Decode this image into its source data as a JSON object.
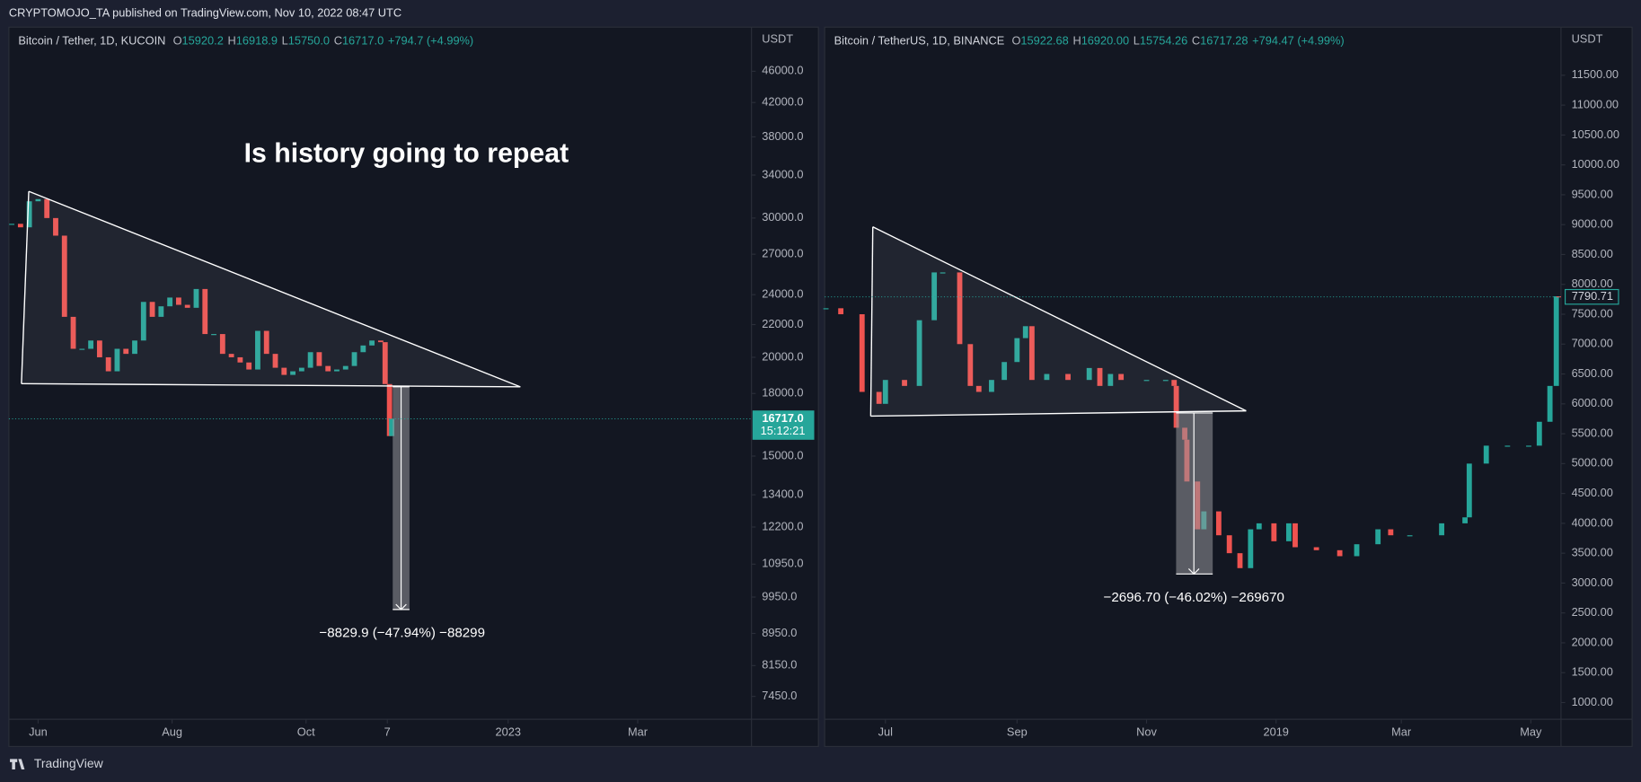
{
  "header": "CRYPTOMOJO_TA published on TradingView.com, Nov 10, 2022 08:47 UTC",
  "footer": "TradingView",
  "chart_data": [
    {
      "type": "candlestick",
      "title": "Is history going to repeat",
      "symbol": "Bitcoin / Tether, 1D, KUCOIN",
      "ohlc": [
        {
          "key": "O",
          "value": "15920.2"
        },
        {
          "key": "H",
          "value": "16918.9"
        },
        {
          "key": "L",
          "value": "15750.0"
        },
        {
          "key": "C",
          "value": "16717.0"
        }
      ],
      "change": "+794.7 (+4.99%)",
      "currency": "USDT",
      "x": [
        -12,
        -8,
        -4,
        0,
        4,
        8,
        12,
        16,
        20,
        24,
        28,
        32,
        36,
        40,
        44,
        48,
        52,
        56,
        60,
        64,
        68,
        72,
        76,
        80,
        84,
        88,
        92,
        96,
        100,
        104,
        108,
        112,
        116,
        120,
        124,
        128,
        132,
        136,
        140,
        144,
        148,
        152,
        156,
        158,
        160,
        161
      ],
      "values": [
        29500,
        29200,
        31500,
        31700,
        30000,
        28500,
        22500,
        20500,
        20500,
        21000,
        20000,
        19200,
        20500,
        20200,
        21000,
        23500,
        22500,
        23200,
        23800,
        23300,
        23100,
        24400,
        21400,
        21400,
        20200,
        20000,
        19700,
        19300,
        21600,
        20200,
        19400,
        19000,
        19200,
        19400,
        20300,
        19500,
        19200,
        19300,
        19500,
        20300,
        20700,
        21000,
        20900,
        18500,
        15900,
        16717
      ],
      "up_color": "#26a69a",
      "down_color": "#ef5350",
      "log_scale": true,
      "xlim": [
        -13.3,
        324.8
      ],
      "ylim": [
        6970,
        52300
      ],
      "xticks": [
        {
          "value": 0,
          "label": "Jun"
        },
        {
          "value": 61,
          "label": "Aug"
        },
        {
          "value": 122,
          "label": "Oct"
        },
        {
          "value": 159,
          "label": "7"
        },
        {
          "value": 214,
          "label": "2023"
        },
        {
          "value": 273,
          "label": "Mar"
        }
      ],
      "yticks": [
        {
          "value": 46000,
          "label": "46000.0"
        },
        {
          "value": 42000,
          "label": "42000.0"
        },
        {
          "value": 38000,
          "label": "38000.0"
        },
        {
          "value": 34000,
          "label": "34000.0"
        },
        {
          "value": 30000,
          "label": "30000.0"
        },
        {
          "value": 27000,
          "label": "27000.0"
        },
        {
          "value": 24000,
          "label": "24000.0"
        },
        {
          "value": 22000,
          "label": "22000.0"
        },
        {
          "value": 20000,
          "label": "20000.0"
        },
        {
          "value": 18000,
          "label": "18000.0"
        },
        {
          "value": 15000,
          "label": "15000.0"
        },
        {
          "value": 13400,
          "label": "13400.0"
        },
        {
          "value": 12200,
          "label": "12200.0"
        },
        {
          "value": 10950,
          "label": "10950.0"
        },
        {
          "value": 9950,
          "label": "9950.0"
        },
        {
          "value": 8950,
          "label": "8950.0"
        },
        {
          "value": 8150,
          "label": "8150.0"
        },
        {
          "value": 7450,
          "label": "7450.0"
        }
      ],
      "last_price": {
        "value": 16717.0,
        "label": "16717.0"
      },
      "countdown": "15:12:21",
      "measure_label": "−8829.9 (−47.94%) −88299"
    },
    {
      "type": "candlestick",
      "symbol": "Bitcoin / TetherUS, 1D, BINANCE",
      "ohlc": [
        {
          "key": "O",
          "value": "15922.68"
        },
        {
          "key": "H",
          "value": "16920.00"
        },
        {
          "key": "L",
          "value": "15754.26"
        },
        {
          "key": "C",
          "value": "16717.28"
        }
      ],
      "change": "+794.47 (+4.99%)",
      "currency": "USDT",
      "x": [
        -28,
        -21,
        -11,
        -3,
        0,
        9,
        16,
        23,
        27,
        35,
        40,
        44,
        50,
        56,
        62,
        66,
        69,
        76,
        86,
        96,
        101,
        106,
        111,
        123,
        132,
        136,
        137,
        141,
        142,
        147,
        150,
        157,
        162,
        167,
        172,
        176,
        183,
        190,
        193,
        203,
        214,
        222,
        232,
        238,
        247,
        262,
        273,
        275,
        283,
        293,
        303,
        308,
        313,
        316,
        317
      ],
      "values": [
        7600,
        7500,
        6200,
        6000,
        6400,
        6300,
        7400,
        8200,
        8200,
        7000,
        6300,
        6200,
        6400,
        6700,
        7100,
        7300,
        6400,
        6500,
        6400,
        6600,
        6300,
        6500,
        6400,
        6400,
        6400,
        6300,
        5600,
        5400,
        4700,
        3900,
        4200,
        3800,
        3500,
        3250,
        3900,
        4000,
        3700,
        4000,
        3600,
        3550,
        3450,
        3650,
        3900,
        3800,
        3800,
        4000,
        4100,
        5000,
        5300,
        5300,
        5300,
        5700,
        6300,
        7800,
        7790.71
      ],
      "up_color": "#26a69a",
      "down_color": "#ef5350",
      "log_scale": false,
      "xlim": [
        -28.6,
        318.2
      ],
      "ylim": [
        720,
        12305
      ],
      "xticks": [
        {
          "value": 0,
          "label": "Jul"
        },
        {
          "value": 62,
          "label": "Sep"
        },
        {
          "value": 123,
          "label": "Nov"
        },
        {
          "value": 184,
          "label": "2019"
        },
        {
          "value": 243,
          "label": "Mar"
        },
        {
          "value": 304,
          "label": "May"
        }
      ],
      "yticks": [
        {
          "value": 11500,
          "label": "11500.00"
        },
        {
          "value": 11000,
          "label": "11000.00"
        },
        {
          "value": 10500,
          "label": "10500.00"
        },
        {
          "value": 10000,
          "label": "10000.00"
        },
        {
          "value": 9500,
          "label": "9500.00"
        },
        {
          "value": 9000,
          "label": "9000.00"
        },
        {
          "value": 8500,
          "label": "8500.00"
        },
        {
          "value": 8000,
          "label": "8000.00"
        },
        {
          "value": 7500,
          "label": "7500.00"
        },
        {
          "value": 7000,
          "label": "7000.00"
        },
        {
          "value": 6500,
          "label": "6500.00"
        },
        {
          "value": 6000,
          "label": "6000.00"
        },
        {
          "value": 5500,
          "label": "5500.00"
        },
        {
          "value": 5000,
          "label": "5000.00"
        },
        {
          "value": 4500,
          "label": "4500.00"
        },
        {
          "value": 4000,
          "label": "4000.00"
        },
        {
          "value": 3500,
          "label": "3500.00"
        },
        {
          "value": 3000,
          "label": "3000.00"
        },
        {
          "value": 2500,
          "label": "2500.00"
        },
        {
          "value": 2000,
          "label": "2000.00"
        },
        {
          "value": 1500,
          "label": "1500.00"
        },
        {
          "value": 1000,
          "label": "1000.00"
        }
      ],
      "last_price": {
        "value": 7790.71,
        "label": "7790.71"
      },
      "measure_label": "−2696.70 (−46.02%) −269670"
    }
  ]
}
